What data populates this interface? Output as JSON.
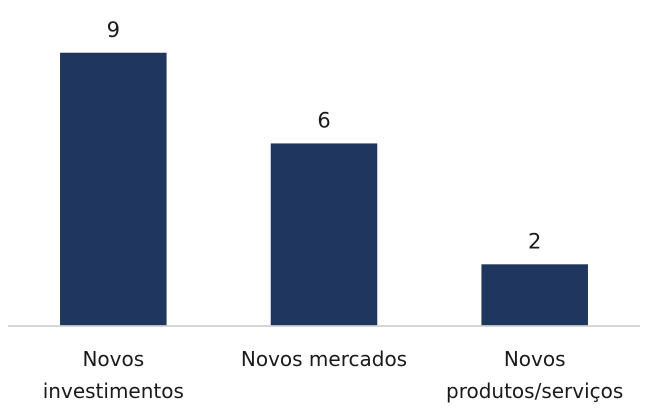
{
  "chart_data": {
    "type": "bar",
    "categories": [
      [
        "Novos",
        "investimentos"
      ],
      [
        "Novos mercados"
      ],
      [
        "Novos",
        "produtos/serviços"
      ]
    ],
    "values": [
      9,
      6,
      2
    ],
    "data_labels": [
      "9",
      "6",
      "2"
    ],
    "title": "",
    "xlabel": "",
    "ylabel": "",
    "ylim": [
      0,
      9
    ],
    "grid": false,
    "legend": "none",
    "colors": {
      "bar": "#1f375f"
    }
  }
}
